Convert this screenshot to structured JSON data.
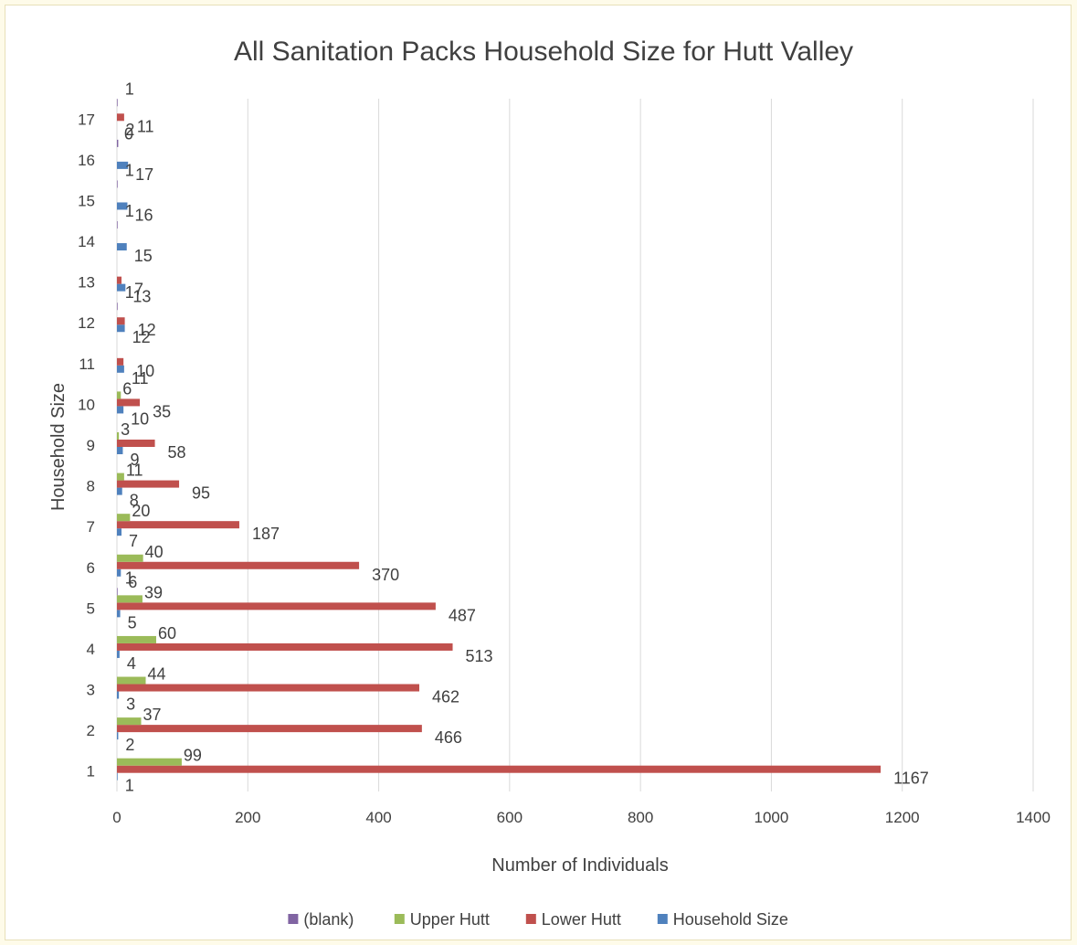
{
  "chart_data": {
    "type": "bar",
    "orientation": "horizontal",
    "title": "All Sanitation Packs Household Size for Hutt Valley",
    "xlabel": "Number of Individuals",
    "ylabel": "Household Size",
    "xlim": [
      0,
      1400
    ],
    "xticks": [
      0,
      200,
      400,
      600,
      800,
      1000,
      1200,
      1400
    ],
    "grid": "vertical",
    "legend_position": "bottom",
    "categories": [
      "1",
      "2",
      "3",
      "4",
      "5",
      "6",
      "7",
      "8",
      "9",
      "10",
      "11",
      "12",
      "13",
      "14",
      "15",
      "16",
      "17"
    ],
    "series": [
      {
        "name": "Household Size",
        "color": "#4f81bd",
        "values": [
          1,
          2,
          3,
          4,
          5,
          6,
          7,
          8,
          9,
          10,
          11,
          12,
          13,
          15,
          16,
          17,
          null
        ],
        "labels": [
          "1",
          "2",
          "3",
          "4",
          "5",
          "6",
          "7",
          "8",
          "9",
          "10",
          "11",
          "12",
          "13",
          "15",
          "16",
          "17",
          "0"
        ]
      },
      {
        "name": "Lower Hutt",
        "color": "#c0504d",
        "values": [
          1167,
          466,
          462,
          513,
          487,
          370,
          187,
          95,
          58,
          35,
          10,
          12,
          7,
          null,
          null,
          null,
          11
        ],
        "labels": [
          "1167",
          "466",
          "462",
          "513",
          "487",
          "370",
          "187",
          "95",
          "58",
          "35",
          "10",
          "12",
          "7",
          "",
          "",
          "",
          "11"
        ]
      },
      {
        "name": "Upper Hutt",
        "color": "#9bbb59",
        "values": [
          99,
          37,
          44,
          60,
          39,
          40,
          20,
          11,
          3,
          6,
          null,
          null,
          null,
          null,
          null,
          null,
          null
        ],
        "labels": [
          "99",
          "37",
          "44",
          "60",
          "39",
          "40",
          "20",
          "11",
          "3",
          "6",
          "",
          "",
          "",
          "",
          "",
          "",
          ""
        ]
      },
      {
        "name": "(blank)",
        "color": "#8064a2",
        "values": [
          null,
          null,
          null,
          null,
          1,
          null,
          null,
          null,
          null,
          null,
          null,
          1,
          null,
          1,
          1,
          2,
          1
        ],
        "labels": [
          "",
          "",
          "",
          "",
          "1",
          "",
          "",
          "",
          "",
          "",
          "",
          "1",
          "",
          "1",
          "1",
          "2",
          "1"
        ]
      }
    ],
    "legend_order": [
      "(blank)",
      "Upper Hutt",
      "Lower Hutt",
      "Household Size"
    ]
  }
}
